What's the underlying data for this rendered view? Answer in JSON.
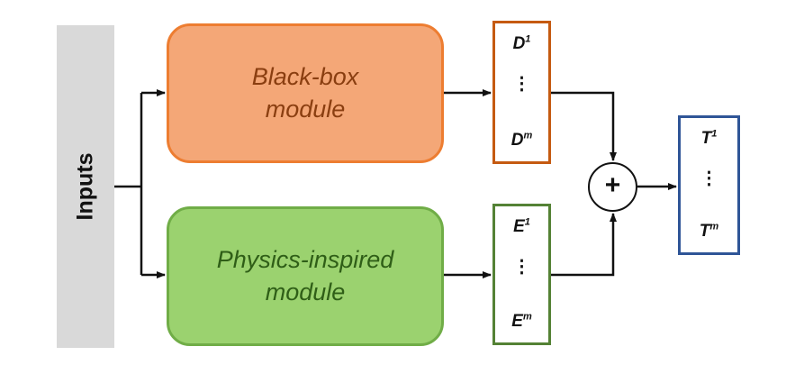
{
  "inputs": {
    "label": "Inputs"
  },
  "modules": {
    "black_box": {
      "line1": "Black-box",
      "line2": "module",
      "fill_color": "#f4a777",
      "border_color": "#ed7d31"
    },
    "physics": {
      "line1": "Physics-inspired",
      "line2": "module",
      "fill_color": "#9bd26f",
      "border_color": "#70ad47"
    }
  },
  "vectors": {
    "d": {
      "symbol": "D",
      "first_index": "1",
      "last_index": "m",
      "dots": "⋮",
      "border_color": "#c55a11"
    },
    "e": {
      "symbol": "E",
      "first_index": "1",
      "last_index": "m",
      "dots": "⋮",
      "border_color": "#548235"
    },
    "t": {
      "symbol": "T",
      "first_index": "1",
      "last_index": "m",
      "dots": "⋮",
      "border_color": "#2f5597"
    }
  },
  "sum_node": {
    "symbol": "+"
  }
}
